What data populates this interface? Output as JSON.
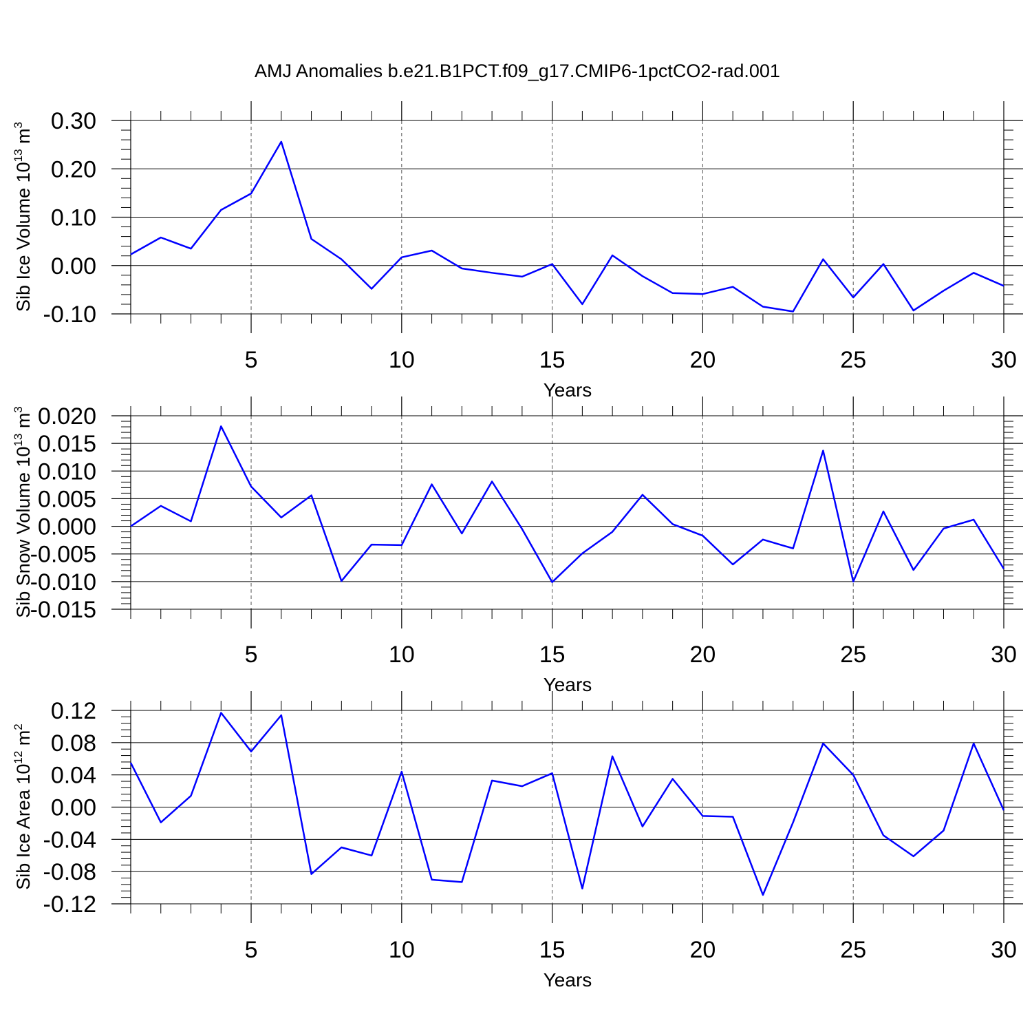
{
  "title": "AMJ Anomalies b.e21.B1PCT.f09_g17.CMIP6-1pctCO2-rad.001",
  "colors": {
    "line": "#0000ff",
    "axis": "#000000",
    "grid": "#555555",
    "background": "#ffffff"
  },
  "chart_data": [
    {
      "type": "line",
      "ylabel": "Sib Ice Volume",
      "ylabel_base": "10",
      "ylabel_exp": "13",
      "ylabel_unit": "m",
      "ylabel_unit_exp": "3",
      "xlabel": "Years",
      "xlim": [
        1,
        30
      ],
      "ylim": [
        -0.1,
        0.3
      ],
      "yticks": [
        -0.1,
        0.0,
        0.1,
        0.2,
        0.3
      ],
      "ytick_labels": [
        "-0.10",
        "0.00",
        "0.10",
        "0.20",
        "0.30"
      ],
      "xticks": [
        5,
        10,
        15,
        20,
        25,
        30
      ],
      "xtick_labels": [
        "5",
        "10",
        "15",
        "20",
        "25",
        "30"
      ],
      "grid_x": [
        5,
        10,
        15,
        20,
        25
      ],
      "x": [
        1,
        2,
        3,
        4,
        5,
        6,
        7,
        8,
        9,
        10,
        11,
        12,
        13,
        14,
        15,
        16,
        17,
        18,
        19,
        20,
        21,
        22,
        23,
        24,
        25,
        26,
        27,
        28,
        29,
        30
      ],
      "series": [
        {
          "name": "Sib Ice Volume",
          "values": [
            0.023,
            0.058,
            0.035,
            0.115,
            0.149,
            0.256,
            0.055,
            0.013,
            -0.048,
            0.017,
            0.031,
            -0.006,
            -0.015,
            -0.023,
            0.003,
            -0.08,
            0.021,
            -0.022,
            -0.057,
            -0.059,
            -0.044,
            -0.085,
            -0.095,
            0.013,
            -0.066,
            0.003,
            -0.093,
            -0.052,
            -0.015,
            -0.042
          ]
        }
      ]
    },
    {
      "type": "line",
      "ylabel": "Sib Snow Volume",
      "ylabel_base": "10",
      "ylabel_exp": "13",
      "ylabel_unit": "m",
      "ylabel_unit_exp": "3",
      "xlabel": "Years",
      "xlim": [
        1,
        30
      ],
      "ylim": [
        -0.015,
        0.02
      ],
      "yticks": [
        -0.015,
        -0.01,
        -0.005,
        0.0,
        0.005,
        0.01,
        0.015,
        0.02
      ],
      "ytick_labels": [
        "-0.015",
        "-0.010",
        "-0.005",
        "0.000",
        "0.005",
        "0.010",
        "0.015",
        "0.020"
      ],
      "xticks": [
        5,
        10,
        15,
        20,
        25,
        30
      ],
      "xtick_labels": [
        "5",
        "10",
        "15",
        "20",
        "25",
        "30"
      ],
      "grid_x": [
        5,
        10,
        15,
        20,
        25
      ],
      "x": [
        1,
        2,
        3,
        4,
        5,
        6,
        7,
        8,
        9,
        10,
        11,
        12,
        13,
        14,
        15,
        16,
        17,
        18,
        19,
        20,
        21,
        22,
        23,
        24,
        25,
        26,
        27,
        28,
        29,
        30
      ],
      "series": [
        {
          "name": "Sib Snow Volume",
          "values": [
            0.0,
            0.0037,
            0.0009,
            0.0181,
            0.0072,
            0.0016,
            0.0056,
            -0.0099,
            -0.0033,
            -0.0034,
            0.0076,
            -0.0013,
            0.0081,
            -0.0005,
            -0.0101,
            -0.0049,
            -0.001,
            0.0057,
            0.0004,
            -0.0017,
            -0.0069,
            -0.0024,
            -0.004,
            0.0137,
            -0.01,
            0.0027,
            -0.0079,
            -0.0004,
            0.0012,
            -0.0077
          ]
        }
      ]
    },
    {
      "type": "line",
      "ylabel": "Sib Ice Area",
      "ylabel_base": "10",
      "ylabel_exp": "12",
      "ylabel_unit": "m",
      "ylabel_unit_exp": "2",
      "xlabel": "Years",
      "xlim": [
        1,
        30
      ],
      "ylim": [
        -0.12,
        0.12
      ],
      "yticks": [
        -0.12,
        -0.08,
        -0.04,
        0.0,
        0.04,
        0.08,
        0.12
      ],
      "ytick_labels": [
        "-0.12",
        "-0.08",
        "-0.04",
        "0.00",
        "0.04",
        "0.08",
        "0.12"
      ],
      "xticks": [
        5,
        10,
        15,
        20,
        25,
        30
      ],
      "xtick_labels": [
        "5",
        "10",
        "15",
        "20",
        "25",
        "30"
      ],
      "grid_x": [
        5,
        10,
        15,
        20,
        25
      ],
      "x": [
        1,
        2,
        3,
        4,
        5,
        6,
        7,
        8,
        9,
        10,
        11,
        12,
        13,
        14,
        15,
        16,
        17,
        18,
        19,
        20,
        21,
        22,
        23,
        24,
        25,
        26,
        27,
        28,
        29,
        30
      ],
      "series": [
        {
          "name": "Sib Ice Area",
          "values": [
            0.055,
            -0.019,
            0.014,
            0.117,
            0.069,
            0.114,
            -0.083,
            -0.05,
            -0.06,
            0.044,
            -0.09,
            -0.093,
            0.033,
            0.026,
            0.042,
            -0.101,
            0.063,
            -0.024,
            0.035,
            -0.011,
            -0.012,
            -0.109,
            -0.019,
            0.079,
            0.04,
            -0.035,
            -0.061,
            -0.029,
            0.079,
            -0.004
          ]
        }
      ]
    }
  ]
}
